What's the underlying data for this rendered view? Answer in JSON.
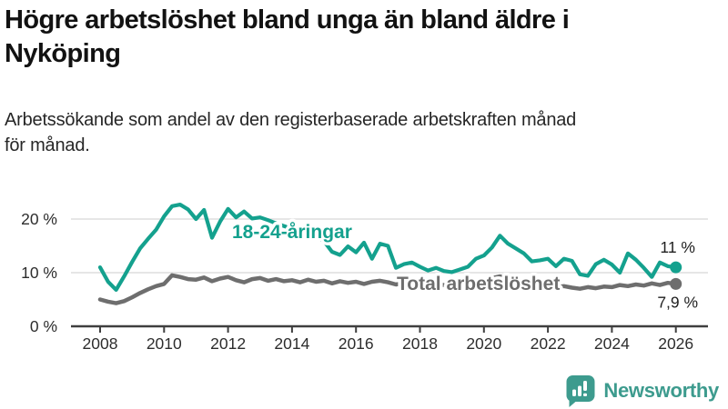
{
  "header": {
    "title_lines": [
      "Högre arbetslöshet bland unga än bland äldre i",
      "Nyköping"
    ],
    "subtitle_lines": [
      "Arbetssökande som andel av den registerbaserade arbetskraften månad",
      "för månad."
    ]
  },
  "footer": {
    "brand": "Newsworthy",
    "brand_color": "#3d9b8e",
    "logo_icon": "speech-bubble-with-bar-chart-and-exclamation"
  },
  "chart_data": {
    "type": "line",
    "title": "Högre arbetslöshet bland unga än bland äldre i Nyköping",
    "subtitle": "Arbetssökande som andel av den registerbaserade arbetskraften månad för månad.",
    "xlabel": "",
    "ylabel": "",
    "grid": "horizontal-gridlines",
    "legend_position": "inline-labels-on-lines",
    "x_start": 2008.0,
    "x_step": 0.25,
    "x_axis_ticks": [
      "2008",
      "2010",
      "2012",
      "2014",
      "2016",
      "2018",
      "2020",
      "2022",
      "2024",
      "2026"
    ],
    "x_axis_tick_years": [
      2008,
      2010,
      2012,
      2014,
      2016,
      2018,
      2020,
      2022,
      2024,
      2026
    ],
    "y_axis_ticks": [
      {
        "value": 0,
        "label": "0 %"
      },
      {
        "value": 10,
        "label": "10 %"
      },
      {
        "value": 20,
        "label": "20 %"
      }
    ],
    "ylim": [
      0,
      24
    ],
    "xlim": [
      2008.0,
      2026.1
    ],
    "colors": {
      "young_series": "#14a18e",
      "total_series": "#6e6e6e",
      "gridline": "#dedede",
      "axis": "#3f3f3f",
      "tick_text": "#2d2d2d",
      "end_label_text": "#1f1f1f",
      "halo": "#ffffff"
    },
    "series": [
      {
        "name": "18-24-åringar",
        "color": "#14a18e",
        "end_label": "11 %",
        "end_value": 11.0,
        "values": [
          11.0,
          8.3,
          6.8,
          9.3,
          12.0,
          14.5,
          16.3,
          18.0,
          20.5,
          22.4,
          22.7,
          21.8,
          20.0,
          21.7,
          16.5,
          19.5,
          21.9,
          20.3,
          21.4,
          20.1,
          20.3,
          19.8,
          19.2,
          18.7,
          18.2,
          17.6,
          17.1,
          16.6,
          15.9,
          13.9,
          13.3,
          14.9,
          13.8,
          15.6,
          12.6,
          15.4,
          15.0,
          10.9,
          11.6,
          11.9,
          11.1,
          10.4,
          10.9,
          10.3,
          10.1,
          10.6,
          11.1,
          12.6,
          13.2,
          14.7,
          16.9,
          15.4,
          14.5,
          13.6,
          12.1,
          12.3,
          12.6,
          11.2,
          12.6,
          12.2,
          9.7,
          9.4,
          11.6,
          12.4,
          11.5,
          10.0,
          13.6,
          12.4,
          10.9,
          9.2,
          11.9,
          11.2,
          11.0
        ]
      },
      {
        "name": "Total arbetslöshet",
        "color": "#6e6e6e",
        "end_label": "7,9 %",
        "end_value": 7.9,
        "values": [
          5.0,
          4.6,
          4.3,
          4.7,
          5.4,
          6.2,
          6.9,
          7.5,
          7.9,
          9.5,
          9.2,
          8.8,
          8.7,
          9.1,
          8.4,
          8.9,
          9.2,
          8.6,
          8.2,
          8.8,
          9.0,
          8.5,
          8.8,
          8.4,
          8.6,
          8.2,
          8.7,
          8.3,
          8.5,
          8.0,
          8.4,
          8.1,
          8.3,
          7.9,
          8.3,
          8.5,
          8.2,
          7.8,
          8.1,
          7.9,
          8.0,
          7.6,
          7.9,
          7.7,
          7.8,
          7.5,
          7.9,
          8.1,
          8.4,
          9.0,
          9.3,
          9.0,
          8.8,
          8.5,
          8.1,
          7.9,
          7.7,
          7.3,
          7.5,
          7.2,
          7.0,
          7.3,
          7.1,
          7.4,
          7.3,
          7.7,
          7.5,
          7.8,
          7.6,
          8.0,
          7.7,
          8.1,
          7.9
        ]
      }
    ]
  }
}
